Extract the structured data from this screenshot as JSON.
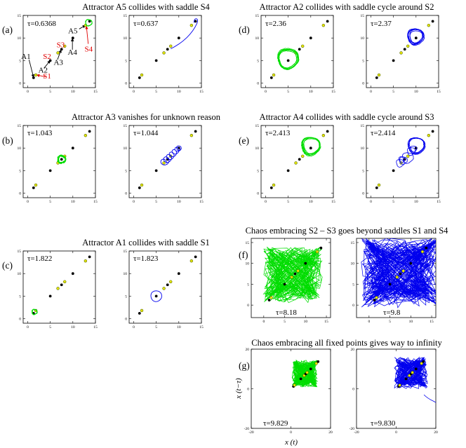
{
  "colors": {
    "green": "#00dd00",
    "blue": "#0000ee",
    "yellow": "#e8e800",
    "red": "#e00000",
    "black": "#000000"
  },
  "fixed_points": [
    {
      "name": "A1",
      "x": 1.3,
      "y": 1.2,
      "type": "attractor"
    },
    {
      "name": "S1",
      "x": 1.8,
      "y": 1.8,
      "type": "saddle"
    },
    {
      "name": "A2",
      "x": 5,
      "y": 5,
      "type": "attractor"
    },
    {
      "name": "S2",
      "x": 6.7,
      "y": 6.7,
      "type": "saddle"
    },
    {
      "name": "A3",
      "x": 7.5,
      "y": 7.5,
      "type": "attractor"
    },
    {
      "name": "S3",
      "x": 8.2,
      "y": 8.2,
      "type": "saddle"
    },
    {
      "name": "A4",
      "x": 10,
      "y": 10,
      "type": "attractor"
    },
    {
      "name": "S4",
      "x": 12.8,
      "y": 12.8,
      "type": "saddle"
    },
    {
      "name": "A5",
      "x": 13.7,
      "y": 13.7,
      "type": "attractor"
    }
  ],
  "rows": [
    {
      "label": "(a)",
      "title": "Attractor A5 collides with saddle S4",
      "left_tau": "τ=0.6368",
      "right_tau": "τ=0.637"
    },
    {
      "label": "(b)",
      "title": "Attractor A3 vanishes for unknown reason",
      "left_tau": "τ=1.043",
      "right_tau": "τ=1.044"
    },
    {
      "label": "(c)",
      "title": "Attractor A1 collides with saddle S1",
      "left_tau": "τ=1.822",
      "right_tau": "τ=1.823"
    },
    {
      "label": "(d)",
      "title": "Attractor A2 collides with saddle cycle around S2",
      "left_tau": "τ=2.36",
      "right_tau": "τ=2.37"
    },
    {
      "label": "(e)",
      "title": "Attractor A4 collides with saddle cycle around S3",
      "left_tau": "τ=2.413",
      "right_tau": "τ=2.414"
    },
    {
      "label": "(f)",
      "title": "Chaos embracing S2 – S3 goes beyond saddles S1 and S4",
      "left_tau": "τ=8.18",
      "right_tau": "τ=9.8"
    },
    {
      "label": "(g)",
      "title": "Chaos embracing all fixed points gives way to infinity",
      "left_tau": "τ=9.829",
      "right_tau": "τ=9.830"
    }
  ],
  "annotations": [
    "A1",
    "S1",
    "A2",
    "S2",
    "A3",
    "S3",
    "A4",
    "A5",
    "S4"
  ],
  "axes": {
    "standard": {
      "xlim": [
        -1,
        15
      ],
      "ylim": [
        -1,
        15
      ],
      "xticks": [
        "0",
        "5",
        "10",
        "15"
      ],
      "yticks": [
        "0",
        "5",
        "10",
        "15"
      ]
    },
    "f": {
      "xlim": [
        -3,
        16
      ],
      "ylim": [
        -3,
        16
      ],
      "xticks": [
        "0",
        "5",
        "10",
        "15"
      ],
      "yticks": [
        "0",
        "5",
        "10",
        "15"
      ]
    },
    "g": {
      "xlim": [
        -20,
        20
      ],
      "ylim": [
        -20,
        20
      ],
      "xticks": [
        "-20",
        "0",
        "20"
      ],
      "yticks": [
        "-20",
        "0",
        "20"
      ],
      "xlabel": "x (t)",
      "ylabel": "x (t−τ)"
    }
  }
}
